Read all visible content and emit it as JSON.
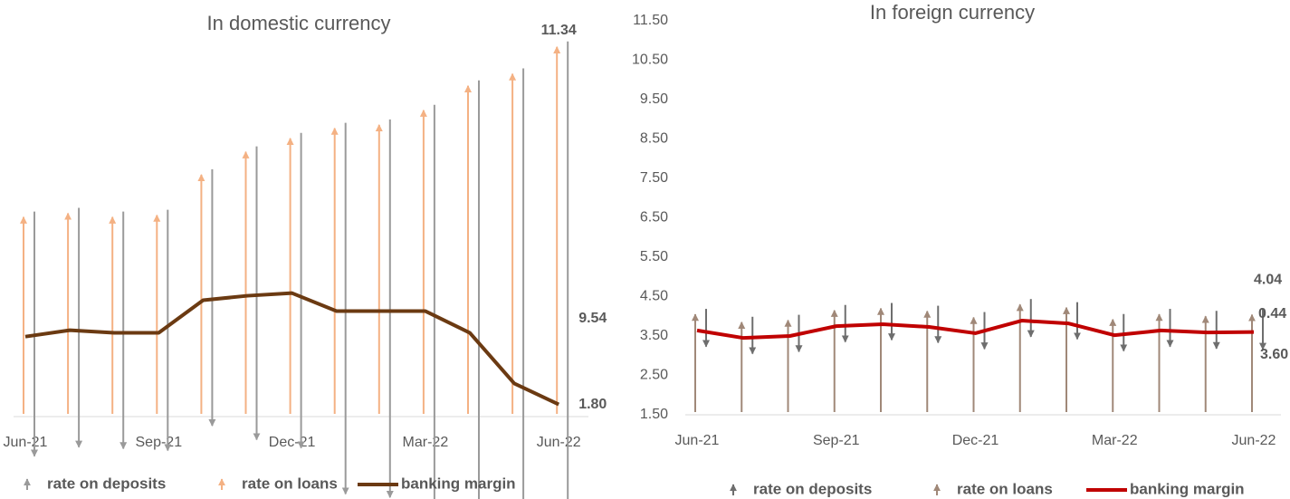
{
  "chart_data": [
    {
      "type": "arrow",
      "title": "In domestic currency",
      "categories": [
        "Jun-21",
        null,
        null,
        "Sep-21",
        null,
        null,
        "Dec-21",
        null,
        null,
        "Mar-22",
        null,
        null,
        "Jun-22"
      ],
      "ylim": [
        1.5,
        11.6
      ],
      "series": [
        {
          "name": "rate on deposits",
          "color": "#9a9a9a",
          "values": [
            3.19,
            3.12,
            3.09,
            3.14,
            3.35,
            3.84,
            4.13,
            4.88,
            4.97,
            5.36,
            6.59,
            8.26,
            9.54
          ],
          "value_labels": [
            null,
            null,
            null,
            null,
            null,
            null,
            null,
            null,
            null,
            null,
            null,
            null,
            "9.54"
          ]
        },
        {
          "name": "rate on loans",
          "color": "#f4b183",
          "values": [
            6.8,
            6.9,
            6.8,
            6.85,
            7.93,
            8.54,
            8.9,
            9.17,
            9.26,
            9.65,
            10.3,
            10.62,
            11.34
          ],
          "value_labels": [
            null,
            null,
            null,
            null,
            null,
            null,
            null,
            null,
            null,
            null,
            null,
            null,
            "11.34"
          ]
        },
        {
          "name": "banking margin",
          "color": "#6b3a12",
          "values": [
            3.61,
            3.78,
            3.71,
            3.71,
            4.58,
            4.7,
            4.77,
            4.29,
            4.29,
            4.29,
            3.71,
            2.36,
            1.8
          ],
          "value_labels": [
            null,
            null,
            null,
            null,
            null,
            null,
            null,
            null,
            null,
            null,
            null,
            null,
            "1.80"
          ]
        }
      ]
    },
    {
      "type": "arrow",
      "title": "In foreign currency",
      "categories": [
        "Jun-21",
        null,
        null,
        "Sep-21",
        null,
        null,
        "Dec-21",
        null,
        null,
        "Mar-22",
        null,
        null,
        "Jun-22"
      ],
      "ylim": [
        1.5,
        11.5
      ],
      "yticks": [
        {
          "value": 1.5,
          "label": "1.50"
        },
        {
          "value": 2.5,
          "label": "2.50"
        },
        {
          "value": 3.5,
          "label": "3.50"
        },
        {
          "value": 4.5,
          "label": "4.50"
        },
        {
          "value": 5.5,
          "label": "5.50"
        },
        {
          "value": 6.5,
          "label": "6.50"
        },
        {
          "value": 7.5,
          "label": "7.50"
        },
        {
          "value": 8.5,
          "label": "8.50"
        },
        {
          "value": 9.5,
          "label": "9.50"
        },
        {
          "value": 10.5,
          "label": "10.50"
        },
        {
          "value": 11.5,
          "label": "11.50"
        }
      ],
      "series": [
        {
          "name": "rate on deposits",
          "color": "#6e6e6e",
          "values": [
            0.41,
            0.4,
            0.4,
            0.4,
            0.4,
            0.4,
            0.4,
            0.41,
            0.4,
            0.4,
            0.41,
            0.41,
            0.44
          ],
          "value_labels": [
            null,
            null,
            null,
            null,
            null,
            null,
            null,
            null,
            null,
            null,
            null,
            null,
            "0.44"
          ]
        },
        {
          "name": "rate on loans",
          "color": "#a08878",
          "values": [
            4.05,
            3.85,
            3.9,
            4.15,
            4.2,
            4.13,
            3.97,
            4.3,
            4.22,
            3.92,
            4.05,
            4.0,
            4.04
          ],
          "value_labels": [
            null,
            null,
            null,
            null,
            null,
            null,
            null,
            null,
            null,
            null,
            null,
            null,
            "4.04"
          ]
        },
        {
          "name": "banking margin",
          "color": "#c00000",
          "values": [
            3.64,
            3.45,
            3.5,
            3.75,
            3.8,
            3.73,
            3.57,
            3.89,
            3.82,
            3.52,
            3.64,
            3.59,
            3.6
          ],
          "value_labels": [
            null,
            null,
            null,
            null,
            null,
            null,
            null,
            null,
            null,
            null,
            null,
            null,
            "3.60"
          ]
        }
      ]
    }
  ]
}
